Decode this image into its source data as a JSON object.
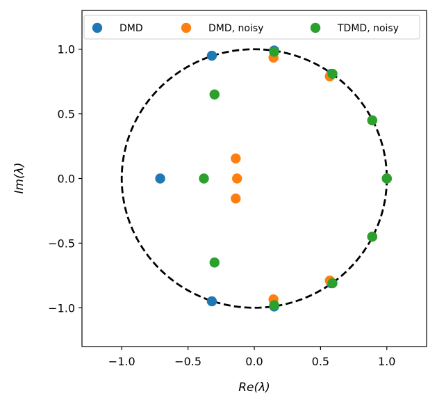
{
  "chart_data": {
    "type": "scatter",
    "xlabel": "Re(λ)",
    "ylabel": "Im(λ)",
    "xlim": [
      -1.3,
      1.3
    ],
    "ylim": [
      -1.3,
      1.3
    ],
    "xticks": [
      -1.0,
      -0.5,
      0.0,
      0.5,
      1.0
    ],
    "yticks": [
      -1.0,
      -0.5,
      0.0,
      0.5,
      1.0
    ],
    "xtick_labels": [
      "−1.0",
      "−0.5",
      "0.0",
      "0.5",
      "1.0"
    ],
    "ytick_labels": [
      "−1.0",
      "−0.5",
      "0.0",
      "0.5",
      "1.0"
    ],
    "grid": false,
    "legend_position": "top",
    "unit_circle": {
      "style": "dashed",
      "color": "#000000",
      "radius": 1.0
    },
    "series": [
      {
        "name": "DMD",
        "color": "#1f77b4",
        "points": [
          {
            "x": -0.71,
            "y": 0.0
          },
          {
            "x": -0.32,
            "y": 0.95
          },
          {
            "x": -0.32,
            "y": -0.95
          },
          {
            "x": 0.15,
            "y": 0.99
          },
          {
            "x": 0.15,
            "y": -0.99
          },
          {
            "x": 0.58,
            "y": 0.81
          },
          {
            "x": 0.58,
            "y": -0.81
          },
          {
            "x": 0.89,
            "y": 0.45
          },
          {
            "x": 0.89,
            "y": -0.45
          },
          {
            "x": 1.0,
            "y": 0.0
          }
        ]
      },
      {
        "name": "DMD, noisy",
        "color": "#ff7f0e",
        "points": [
          {
            "x": -0.14,
            "y": 0.155
          },
          {
            "x": -0.13,
            "y": 0.0
          },
          {
            "x": -0.14,
            "y": -0.155
          },
          {
            "x": 0.145,
            "y": 0.935
          },
          {
            "x": 0.145,
            "y": -0.935
          },
          {
            "x": 0.57,
            "y": 0.79
          },
          {
            "x": 0.57,
            "y": -0.79
          },
          {
            "x": 0.89,
            "y": 0.45
          },
          {
            "x": 0.89,
            "y": -0.45
          },
          {
            "x": 1.0,
            "y": 0.0
          }
        ]
      },
      {
        "name": "TDMD, noisy",
        "color": "#2ca02c",
        "points": [
          {
            "x": -0.3,
            "y": 0.65
          },
          {
            "x": -0.38,
            "y": 0.0
          },
          {
            "x": -0.3,
            "y": -0.65
          },
          {
            "x": 0.15,
            "y": 0.98
          },
          {
            "x": 0.15,
            "y": -0.98
          },
          {
            "x": 0.59,
            "y": 0.81
          },
          {
            "x": 0.59,
            "y": -0.81
          },
          {
            "x": 0.89,
            "y": 0.45
          },
          {
            "x": 0.89,
            "y": -0.45
          },
          {
            "x": 1.0,
            "y": 0.0
          }
        ]
      }
    ]
  }
}
